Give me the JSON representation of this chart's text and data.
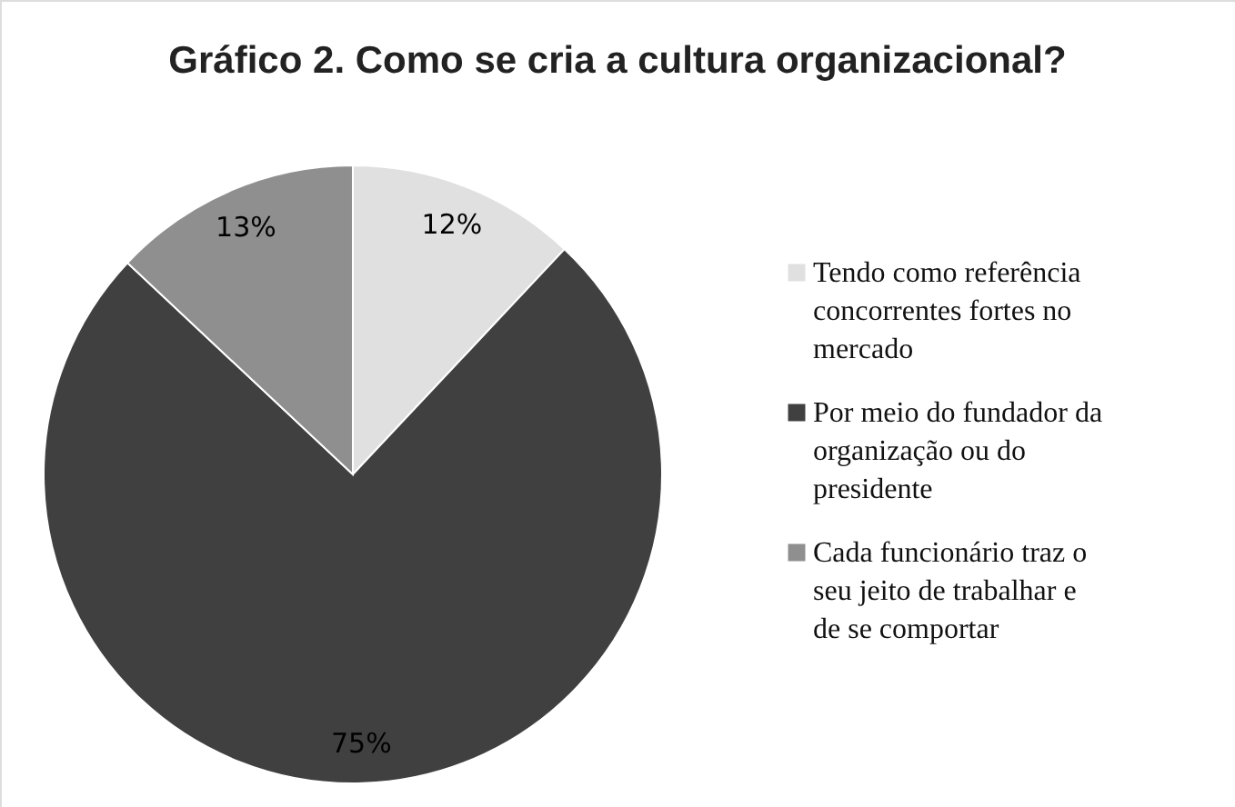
{
  "chart_data": {
    "type": "pie",
    "title": "Gráfico 2. Como se cria a cultura organizacional?",
    "categories": [
      "Tendo como referência concorrentes fortes no mercado",
      "Por meio do fundador da organização ou do presidente",
      "Cada funcionário traz o seu jeito de trabalhar e de se comportar"
    ],
    "values": [
      12,
      75,
      13
    ],
    "colors": [
      "#e0e0e0",
      "#404040",
      "#8f8f8f"
    ],
    "value_labels": [
      "12%",
      "75%",
      "13%"
    ],
    "legend": "right"
  }
}
